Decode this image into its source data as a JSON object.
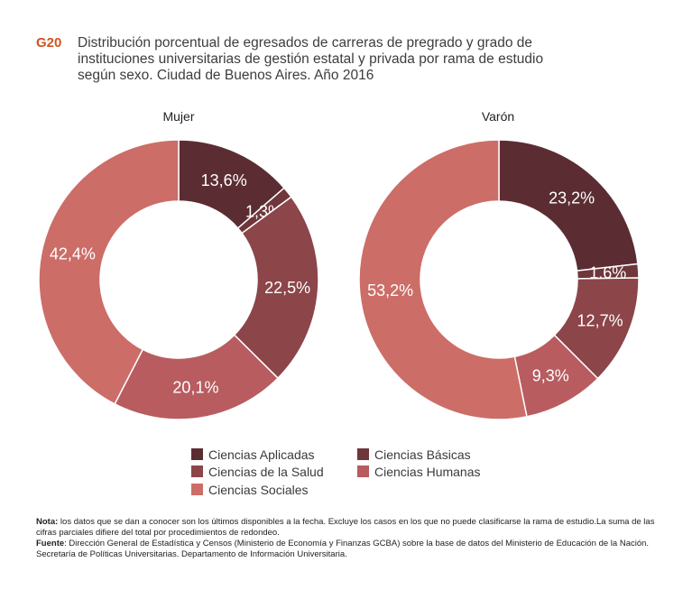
{
  "header": {
    "code": "G20",
    "title": "Distribución porcentual de egresados de carreras de pregrado y grado de instituciones universitarias de gestión estatal y privada por rama de estudio según sexo. Ciudad de Buenos Aires. Año 2016"
  },
  "colors": {
    "Ciencias Aplicadas": "#5b2d33",
    "Ciencias Básicas": "#6f363b",
    "Ciencias de la Salud": "#8c4549",
    "Ciencias Humanas": "#b85c60",
    "Ciencias Sociales": "#cc6d68"
  },
  "chart_data": [
    {
      "type": "pie",
      "variant": "donut",
      "title": "Mujer",
      "categories": [
        "Ciencias Aplicadas",
        "Ciencias Básicas",
        "Ciencias de la Salud",
        "Ciencias Humanas",
        "Ciencias Sociales"
      ],
      "values": [
        13.6,
        1.3,
        22.5,
        20.1,
        42.4
      ],
      "labels": [
        "13,6%",
        "1,3%",
        "22,5%",
        "20,1%",
        "42,4%"
      ]
    },
    {
      "type": "pie",
      "variant": "donut",
      "title": "Varón",
      "categories": [
        "Ciencias Aplicadas",
        "Ciencias Básicas",
        "Ciencias de la Salud",
        "Ciencias Humanas",
        "Ciencias Sociales"
      ],
      "values": [
        23.2,
        1.6,
        12.7,
        9.3,
        53.2
      ],
      "labels": [
        "23,2%",
        "1,6%",
        "12,7%",
        "9,3%",
        "53,2%"
      ]
    }
  ],
  "legend": {
    "items": [
      "Ciencias Aplicadas",
      "Ciencias Básicas",
      "Ciencias de la Salud",
      "Ciencias Humanas",
      "Ciencias Sociales"
    ]
  },
  "notes": {
    "nota_label": "Nota:",
    "nota_text": " los datos que se dan a conocer son los últimos disponibles a la fecha. Excluye los casos en los que no puede clasificarse la rama de estudio.La suma de las cifras parciales difiere del total por procedimientos de redondeo.",
    "fuente_label": "Fuente",
    "fuente_text": ": Dirección General de Estadística y Censos (Ministerio de Economía y Finanzas GCBA) sobre la base de datos del Ministerio de Educación de la Nación. Secretaría de Políticas Universitarias. Departamento de Información Universitaria."
  }
}
